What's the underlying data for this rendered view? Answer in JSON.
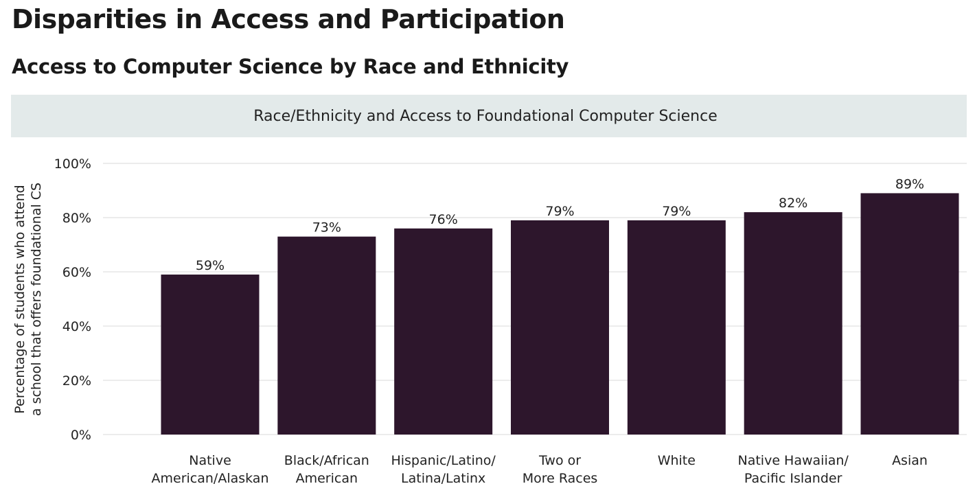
{
  "header": {
    "title": "Disparities in Access and Participation",
    "subtitle": "Access to Computer Science by Race and Ethnicity"
  },
  "chart_data": {
    "type": "bar",
    "title": "Race/Ethnicity and Access to Foundational Computer Science",
    "xlabel": "",
    "ylabel": [
      "Percentage of students who attend",
      "a school that offers foundational CS"
    ],
    "ylim": [
      0,
      100
    ],
    "yticks": [
      0,
      20,
      40,
      60,
      80,
      100
    ],
    "ytick_labels": [
      "0%",
      "20%",
      "40%",
      "60%",
      "80%",
      "100%"
    ],
    "categories": [
      [
        "Native",
        "American/Alaskan"
      ],
      [
        "Black/African",
        "American"
      ],
      [
        "Hispanic/Latino/",
        "Latina/Latinx"
      ],
      [
        "Two or",
        "More Races"
      ],
      [
        "White"
      ],
      [
        "Native Hawaiian/",
        "Pacific Islander"
      ],
      [
        "Asian"
      ]
    ],
    "values": [
      59,
      73,
      76,
      79,
      79,
      82,
      89
    ],
    "value_labels": [
      "59%",
      "73%",
      "76%",
      "79%",
      "79%",
      "82%",
      "89%"
    ],
    "grid": true,
    "legend": "none",
    "bar_color": "#2d162c",
    "grid_color": "#d9d9d9"
  }
}
